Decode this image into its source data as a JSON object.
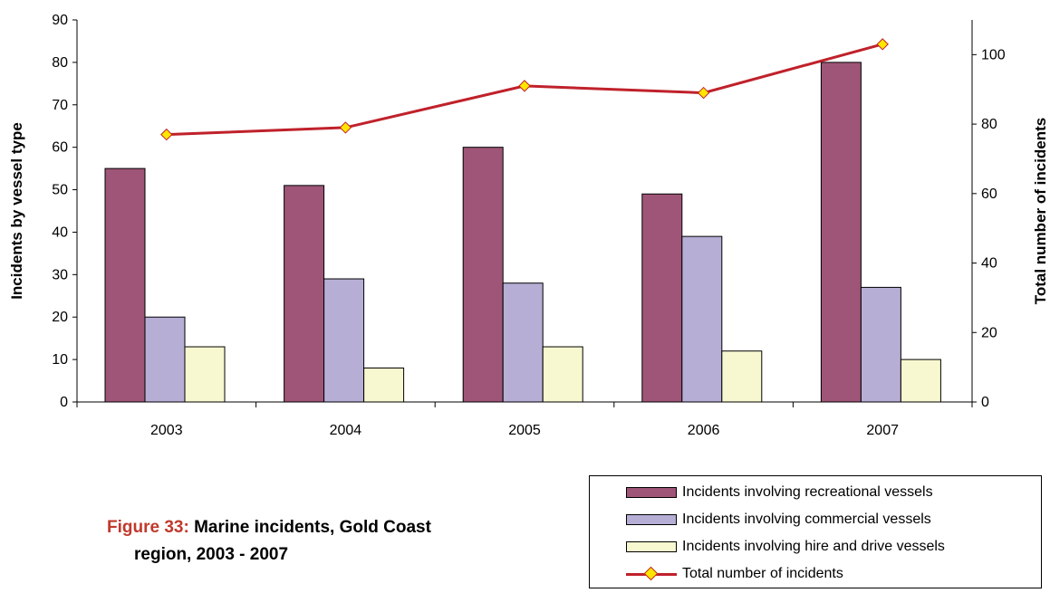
{
  "chart_data": {
    "type": "bar",
    "categories": [
      "2003",
      "2004",
      "2005",
      "2006",
      "2007"
    ],
    "series": [
      {
        "name": "Incidents involving recreational vessels",
        "axis": "left",
        "color": "#9e5577",
        "values": [
          55,
          51,
          60,
          49,
          80
        ]
      },
      {
        "name": "Incidents involving commercial vessels",
        "axis": "left",
        "color": "#b7aed6",
        "values": [
          20,
          29,
          28,
          39,
          27
        ]
      },
      {
        "name": "Incidents involving hire and drive vessels",
        "axis": "left",
        "color": "#f8f8d0",
        "values": [
          13,
          8,
          13,
          12,
          10
        ]
      },
      {
        "name": "Total number of incidents",
        "axis": "right",
        "type": "line",
        "color": "#c0212b",
        "marker_color": "#ffe600",
        "values": [
          77,
          79,
          91,
          89,
          103
        ]
      }
    ],
    "ylabel": "Incidents by vessel type",
    "y2label": "Total number of incidents",
    "ylim": [
      0,
      90
    ],
    "y2lim": [
      0,
      110
    ],
    "yticks": [
      "0",
      "10",
      "20",
      "30",
      "40",
      "50",
      "60",
      "70",
      "80",
      "90"
    ],
    "y2ticks": [
      "0",
      "20",
      "40",
      "60",
      "80",
      "100"
    ],
    "legend_position": "bottom-right",
    "grid": false
  },
  "caption": {
    "label": "Figure 33:",
    "line1": "Marine incidents, Gold Coast",
    "line2": "region, 2003 - 2007"
  },
  "legend": {
    "recreational": "Incidents involving recreational vessels",
    "commercial": "Incidents involving commercial vessels",
    "hire_drive": "Incidents involving hire and drive vessels",
    "total": "Total number of incidents"
  }
}
